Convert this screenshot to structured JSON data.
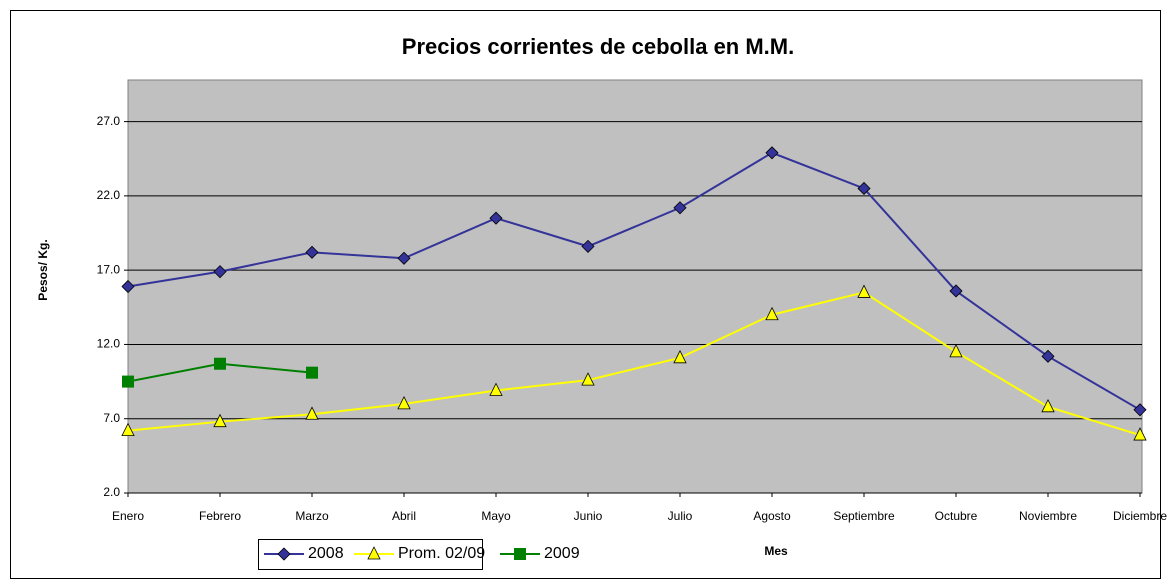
{
  "chart_data": {
    "type": "line",
    "title": "Precios corrientes de cebolla en M.M.",
    "x_label": "Mes",
    "y_label": "Pesos/ Kg.",
    "categories": [
      "Enero",
      "Febrero",
      "Marzo",
      "Abril",
      "Mayo",
      "Junio",
      "Julio",
      "Agosto",
      "Septiembre",
      "Octubre",
      "Noviembre",
      "Diciembre"
    ],
    "series": [
      {
        "name": "2008",
        "color": "#333399",
        "marker": "diamond",
        "values": [
          15.9,
          16.9,
          18.2,
          17.8,
          20.5,
          18.6,
          21.2,
          24.9,
          22.5,
          15.6,
          11.2,
          7.6
        ]
      },
      {
        "name": "Prom. 02/09",
        "color": "#ffff00",
        "marker": "triangle",
        "values": [
          6.2,
          6.8,
          7.3,
          8.0,
          8.9,
          9.6,
          11.1,
          14.0,
          15.5,
          11.5,
          7.8,
          5.9
        ]
      },
      {
        "name": "2009",
        "color": "#008000",
        "marker": "square",
        "values": [
          9.5,
          10.7,
          10.1,
          null,
          null,
          null,
          null,
          null,
          null,
          null,
          null,
          null
        ]
      }
    ],
    "ylim": [
      2,
      29.8
    ],
    "yticks": [
      {
        "value": 2,
        "label": "2.0"
      },
      {
        "value": 7,
        "label": "7.0"
      },
      {
        "value": 12,
        "label": "12.0"
      },
      {
        "value": 17,
        "label": "17.0"
      },
      {
        "value": 22,
        "label": "22.0"
      },
      {
        "value": 27,
        "label": "27.0"
      }
    ],
    "grid": true,
    "legend": "bottom-left"
  }
}
